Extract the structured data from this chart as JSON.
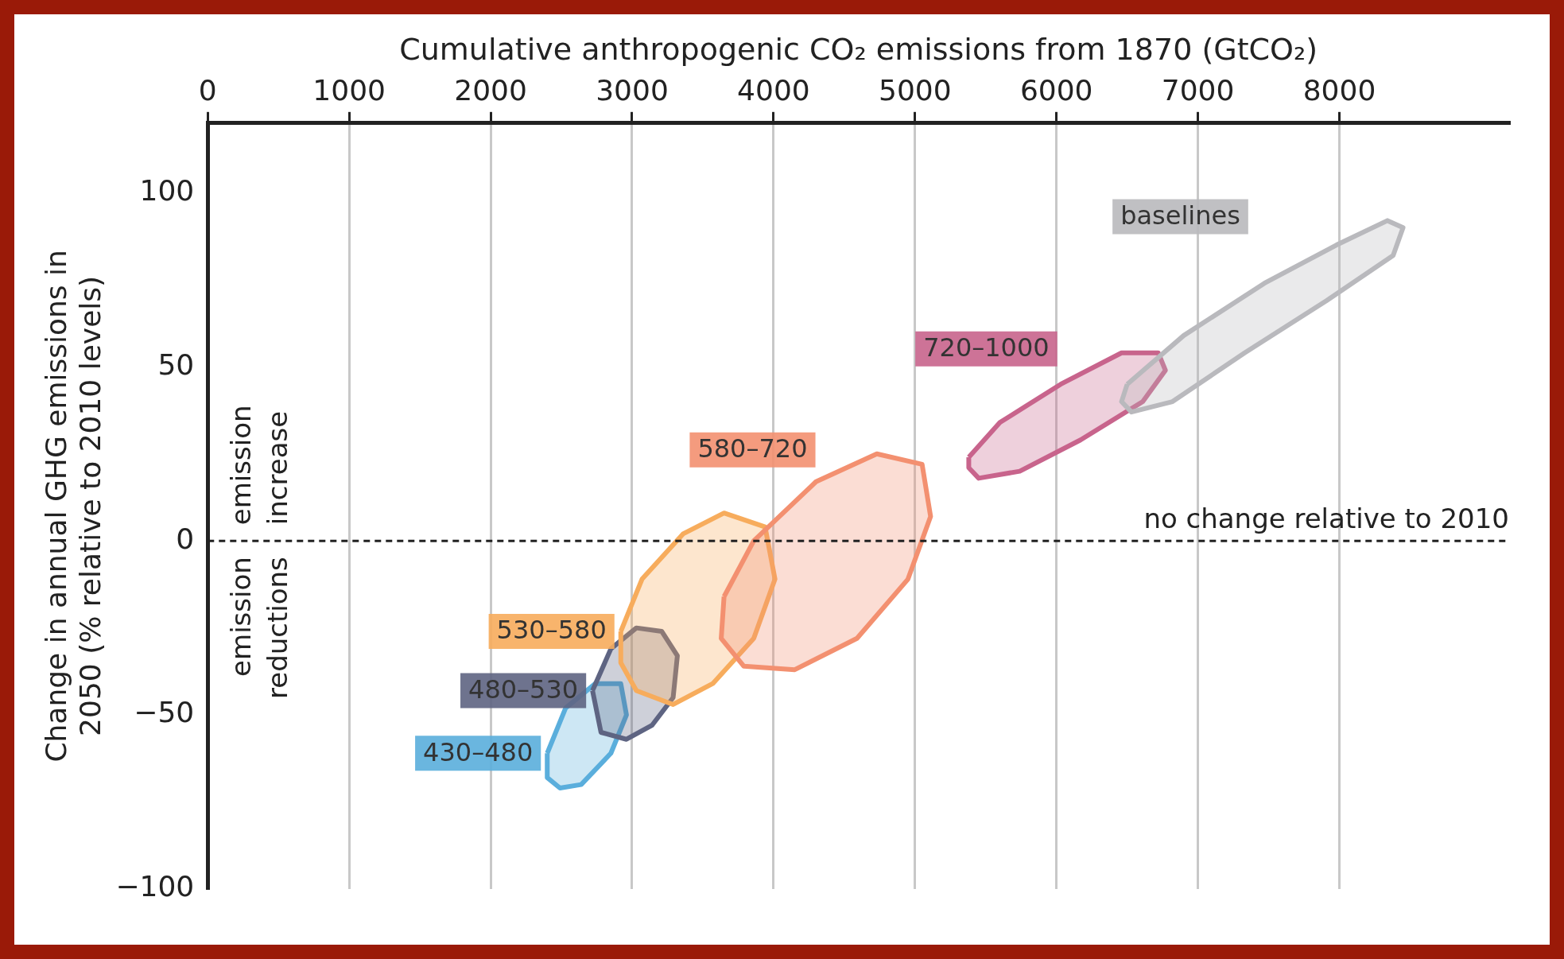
{
  "chart_data": {
    "type": "area",
    "xlabel": "Cumulative anthropogenic CO₂ emissions from 1870 (GtCO₂)",
    "ylabel": "Change in annual GHG emissions in 2050 (% relative to 2010 levels)",
    "xlim": [
      0,
      9200
    ],
    "xticks": [
      0,
      1000,
      2000,
      3000,
      4000,
      5000,
      6000,
      7000,
      8000
    ],
    "ylim": [
      -100,
      120
    ],
    "yticks": [
      -100,
      -50,
      0,
      50,
      100
    ],
    "grid": "x",
    "legend": false,
    "marker": "none",
    "line_style": "solid",
    "ref_lines": [
      {
        "axis": "y",
        "value": 0,
        "label": "no change relative to 2010",
        "line_style": "dashed",
        "color": "#222222"
      }
    ],
    "annotations": [
      "emission increase",
      "emission reductions"
    ],
    "series": [
      {
        "name": "baselines",
        "color": "#b9b9bd",
        "x": [
          6500,
          6900,
          7470,
          7980,
          8340,
          8450,
          8380,
          7910,
          7330,
          6820,
          6530,
          6460
        ],
        "values": [
          45,
          59,
          74,
          85,
          92,
          90,
          82,
          69,
          54,
          40,
          37,
          40
        ]
      },
      {
        "name": "720–1000",
        "color": "#c8648c",
        "x": [
          5380,
          5600,
          6030,
          6460,
          6720,
          6770,
          6610,
          6170,
          5740,
          5450,
          5380
        ],
        "values": [
          24,
          34,
          45,
          54,
          54,
          49,
          40,
          29,
          20,
          18,
          21
        ]
      },
      {
        "name": "580–720",
        "color": "#f39070",
        "x": [
          3650,
          3860,
          4300,
          4730,
          5050,
          5110,
          4950,
          4590,
          4150,
          3790,
          3630
        ],
        "values": [
          -16,
          0,
          17,
          25,
          22,
          7,
          -11,
          -28,
          -37,
          -36,
          -28
        ]
      },
      {
        "name": "530–580",
        "color": "#f7ac5c",
        "x": [
          2920,
          3070,
          3360,
          3650,
          3940,
          4010,
          3860,
          3570,
          3290,
          3030,
          2920
        ],
        "values": [
          -26,
          -11,
          2,
          8,
          4,
          -11,
          -28,
          -41,
          -47,
          -43,
          -35
        ]
      },
      {
        "name": "480–530",
        "color": "#5e6482",
        "x": [
          2720,
          2850,
          3030,
          3210,
          3320,
          3290,
          3140,
          2960,
          2780
        ],
        "values": [
          -43,
          -31,
          -25,
          -26,
          -33,
          -45,
          -53,
          -57,
          -55
        ]
      },
      {
        "name": "430–480",
        "color": "#5aaedc",
        "x": [
          2400,
          2530,
          2740,
          2920,
          2960,
          2850,
          2640,
          2490,
          2400
        ],
        "values": [
          -61,
          -48,
          -41,
          -41,
          -50,
          -61,
          -70,
          -71,
          -68
        ]
      }
    ]
  }
}
